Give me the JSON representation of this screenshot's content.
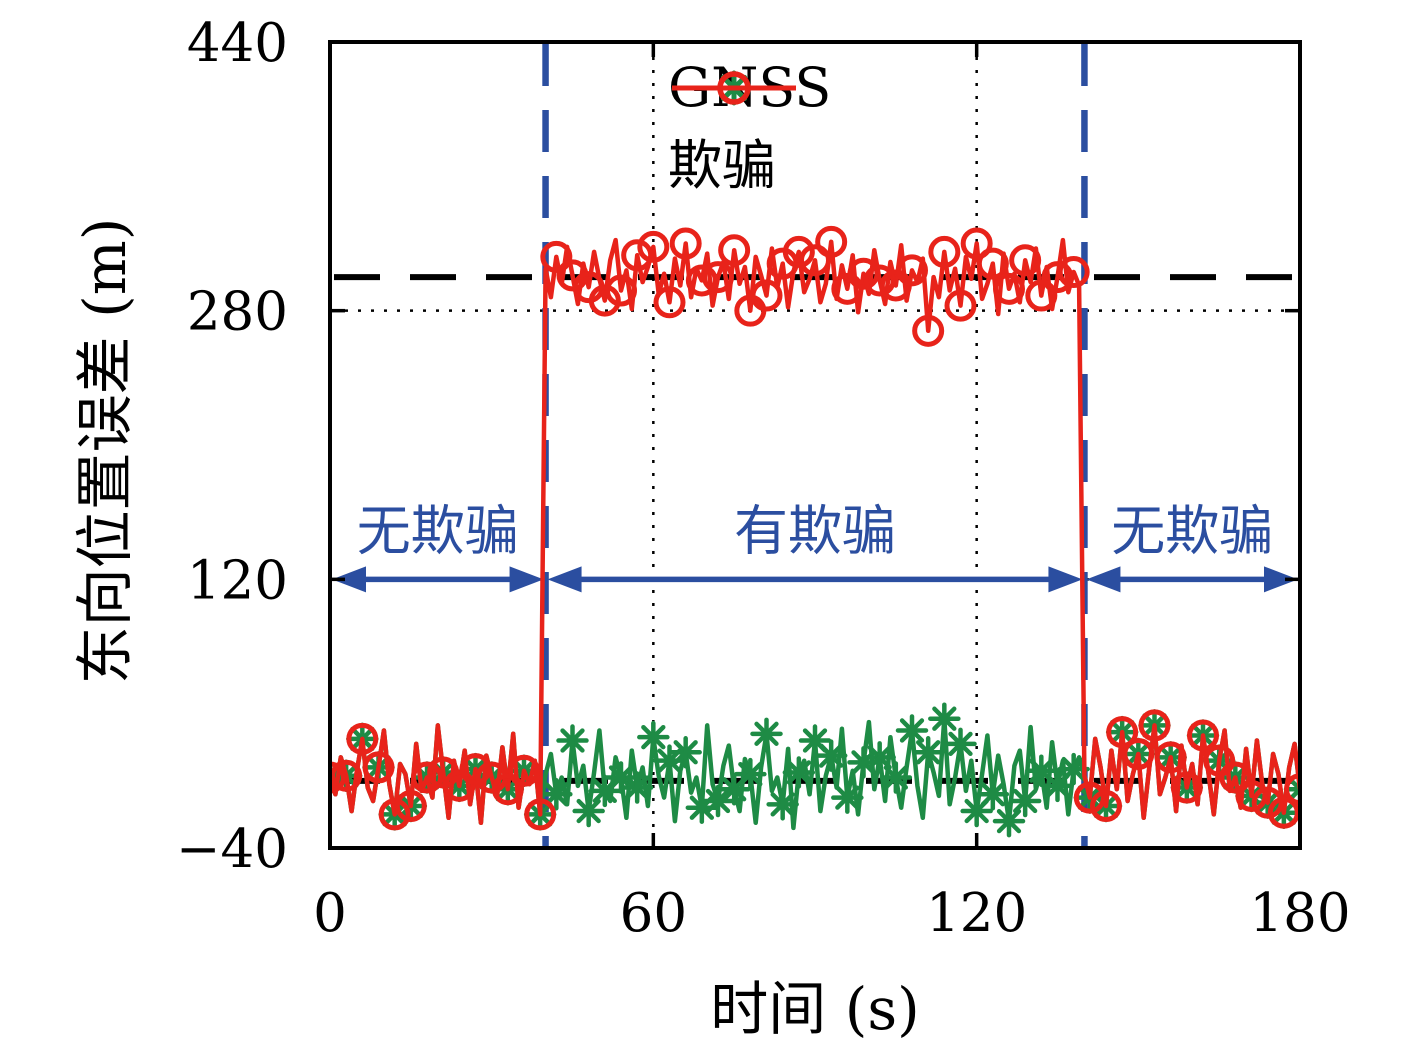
{
  "figure": {
    "background": "#ffffff"
  },
  "colors": {
    "gnss_green": "#1e8b45",
    "spoof_red": "#e8231a",
    "annotation_blue": "#2b4ea0",
    "axis_black": "#000000"
  },
  "legend": {
    "position": "top-center-inside",
    "items": [
      {
        "label": "GNSS",
        "marker_icon": "asterisk-icon",
        "color": "#1e8b45"
      },
      {
        "label": "欺骗",
        "marker_icon": "circle-icon",
        "color": "#e8231a"
      }
    ]
  },
  "chart_data": {
    "type": "line",
    "title": "",
    "xlabel": "时间 (s)",
    "ylabel": "东向位置误差 (m)",
    "xlim": [
      0,
      180
    ],
    "ylim": [
      -40,
      440
    ],
    "x_ticks": [
      {
        "value": 0,
        "label": "0"
      },
      {
        "value": 60,
        "label": "60"
      },
      {
        "value": 120,
        "label": "120"
      },
      {
        "value": 180,
        "label": "180"
      }
    ],
    "y_ticks": [
      {
        "value": -40,
        "label": "−40"
      },
      {
        "value": 120,
        "label": "120"
      },
      {
        "value": 280,
        "label": "280"
      },
      {
        "value": 440,
        "label": "440"
      }
    ],
    "grid": {
      "style": "dotted",
      "x_dotted": [
        60,
        120
      ],
      "y_dotted": [
        120,
        280
      ]
    },
    "reference_lines": [
      {
        "axis": "y",
        "value": 300,
        "style": "dashed",
        "color": "#000000"
      },
      {
        "axis": "y",
        "value": 0,
        "style": "dashed",
        "color": "#000000"
      }
    ],
    "spoof_window_lines": [
      {
        "axis": "x",
        "value": 40,
        "style": "dashed",
        "color": "#2b4ea0"
      },
      {
        "axis": "x",
        "value": 140,
        "style": "dashed",
        "color": "#2b4ea0"
      }
    ],
    "region_arrow_y": 120,
    "regions": [
      {
        "label": "无欺骗",
        "from": 0,
        "to": 40,
        "color": "#2b4ea0"
      },
      {
        "label": "有欺骗",
        "from": 40,
        "to": 140,
        "color": "#2b4ea0"
      },
      {
        "label": "无欺骗",
        "from": 140,
        "to": 180,
        "color": "#2b4ea0"
      }
    ],
    "x_start": 0,
    "x_step": 1,
    "marker_every": 3,
    "series": [
      {
        "name": "GNSS",
        "color": "#1e8b45",
        "marker": "asterisk",
        "values": [
          2,
          -8,
          14,
          3,
          -18,
          6,
          25,
          -4,
          -12,
          8,
          30,
          -2,
          -20,
          10,
          4,
          -15,
          22,
          -6,
          2,
          -10,
          33,
          5,
          -22,
          12,
          -3,
          18,
          -14,
          7,
          -25,
          15,
          2,
          -9,
          20,
          -5,
          28,
          -16,
          6,
          -2,
          12,
          -20,
          4,
          16,
          -8,
          2,
          -14,
          24,
          -3,
          9,
          -18,
          5,
          30,
          -6,
          -12,
          14,
          2,
          -22,
          18,
          -4,
          8,
          -15,
          26,
          3,
          -10,
          12,
          -24,
          6,
          17,
          -7,
          2,
          -16,
          33,
          -2,
          -12,
          9,
          21,
          -5,
          -18,
          13,
          4,
          -25,
          8,
          28,
          -6,
          2,
          -14,
          19,
          -28,
          5,
          12,
          -8,
          24,
          -18,
          3,
          15,
          -4,
          31,
          -10,
          6,
          -20,
          11,
          35,
          -5,
          14,
          -12,
          26,
          2,
          -16,
          8,
          30,
          -3,
          -22,
          17,
          5,
          -9,
          37,
          -14,
          2,
          22,
          -6,
          12,
          -18,
          4,
          27,
          -8,
          15,
          -2,
          -24,
          9,
          18,
          -12,
          32,
          -5,
          6,
          -16,
          23,
          -3,
          12,
          -20,
          7,
          14,
          3,
          -10,
          25,
          8,
          -15,
          18,
          -5,
          29,
          -12,
          4,
          16,
          -22,
          7,
          33,
          -8,
          2,
          14,
          -18,
          21,
          -4,
          10,
          -14,
          27,
          5,
          -20,
          12,
          30,
          -6,
          2,
          -16,
          19,
          -9,
          24,
          -2,
          -13,
          16,
          4,
          -19,
          8,
          22,
          -5
        ]
      },
      {
        "name": "欺骗",
        "color": "#e8231a",
        "marker": "circle",
        "values": [
          2,
          -8,
          14,
          3,
          -18,
          6,
          25,
          -4,
          -12,
          8,
          30,
          -2,
          -20,
          10,
          4,
          -15,
          22,
          -6,
          2,
          -10,
          33,
          5,
          -22,
          12,
          -3,
          18,
          -14,
          7,
          -25,
          15,
          2,
          -9,
          20,
          -5,
          28,
          -16,
          6,
          -2,
          12,
          -20,
          305,
          288,
          312,
          296,
          318,
          301,
          284,
          308,
          294,
          315,
          299,
          286,
          310,
          322,
          292,
          304,
          281,
          313,
          297,
          306,
          318,
          290,
          302,
          285,
          311,
          295,
          320,
          288,
          305,
          298,
          314,
          283,
          300,
          309,
          287,
          316,
          296,
          306,
          280,
          312,
          301,
          289,
          317,
          294,
          308,
          282,
          303,
          315,
          291,
          299,
          310,
          285,
          296,
          321,
          287,
          307,
          293,
          313,
          279,
          302,
          290,
          316,
          298,
          284,
          309,
          295,
          319,
          286,
          304,
          297,
          311,
          268,
          300,
          288,
          315,
          292,
          305,
          283,
          312,
          299,
          320,
          287,
          296,
          308,
          278,
          314,
          293,
          302,
          285,
          310,
          297,
          317,
          289,
          306,
          281,
          300,
          322,
          291,
          303,
          295,
          3,
          -10,
          25,
          8,
          -15,
          18,
          -5,
          29,
          -12,
          4,
          16,
          -22,
          7,
          33,
          -8,
          2,
          14,
          -18,
          21,
          -4,
          10,
          -14,
          27,
          5,
          -20,
          12,
          30,
          -6,
          2,
          -16,
          19,
          -9,
          24,
          -2,
          -13,
          16,
          4,
          -19,
          8,
          22,
          -5
        ]
      }
    ]
  }
}
